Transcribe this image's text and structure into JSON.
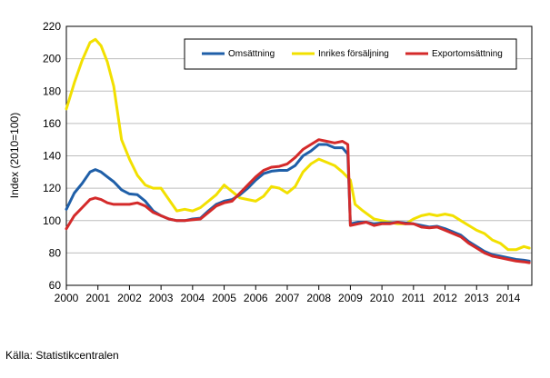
{
  "chart_data": {
    "type": "line",
    "ylabel": "Index (2010=100)",
    "ylim": [
      60,
      220
    ],
    "yticks": [
      60,
      80,
      100,
      120,
      140,
      160,
      180,
      200,
      220
    ],
    "xlim": [
      2000,
      2014.75
    ],
    "xticks": [
      "2000",
      "2001",
      "2002",
      "2003",
      "2004",
      "2005",
      "2006",
      "2007",
      "2008",
      "2009",
      "2010",
      "2011",
      "2012",
      "2013",
      "2014"
    ],
    "grid": true,
    "legend_position": "top-right",
    "colors": {
      "Omsättning": "#1f5fa8",
      "Inrikes försäljning": "#f2e000",
      "Exportomsättning": "#d42a2a"
    },
    "series": [
      {
        "name": "Omsättning",
        "points": [
          [
            2000.0,
            107
          ],
          [
            2000.25,
            117
          ],
          [
            2000.5,
            123
          ],
          [
            2000.75,
            130
          ],
          [
            2000.92,
            131.5
          ],
          [
            2001.1,
            130
          ],
          [
            2001.3,
            127
          ],
          [
            2001.5,
            124
          ],
          [
            2001.75,
            119
          ],
          [
            2002.0,
            116.5
          ],
          [
            2002.25,
            116
          ],
          [
            2002.5,
            112
          ],
          [
            2002.75,
            106
          ],
          [
            2003.0,
            103
          ],
          [
            2003.25,
            101
          ],
          [
            2003.5,
            100
          ],
          [
            2003.75,
            100
          ],
          [
            2004.0,
            101
          ],
          [
            2004.25,
            101.5
          ],
          [
            2004.5,
            106
          ],
          [
            2004.75,
            110
          ],
          [
            2005.0,
            112
          ],
          [
            2005.25,
            113
          ],
          [
            2005.5,
            116
          ],
          [
            2005.75,
            120
          ],
          [
            2006.0,
            125
          ],
          [
            2006.25,
            129
          ],
          [
            2006.5,
            130.5
          ],
          [
            2006.75,
            131
          ],
          [
            2007.0,
            131
          ],
          [
            2007.25,
            134
          ],
          [
            2007.5,
            140
          ],
          [
            2007.75,
            143
          ],
          [
            2008.0,
            147
          ],
          [
            2008.25,
            147
          ],
          [
            2008.5,
            145
          ],
          [
            2008.75,
            145
          ],
          [
            2008.92,
            141
          ],
          [
            2009.0,
            98
          ],
          [
            2009.25,
            99
          ],
          [
            2009.5,
            99
          ],
          [
            2009.75,
            98
          ],
          [
            2010.0,
            98.5
          ],
          [
            2010.25,
            98.5
          ],
          [
            2010.5,
            99
          ],
          [
            2010.75,
            98.5
          ],
          [
            2011.0,
            98
          ],
          [
            2011.25,
            97
          ],
          [
            2011.5,
            96
          ],
          [
            2011.75,
            96.5
          ],
          [
            2012.0,
            95
          ],
          [
            2012.25,
            93
          ],
          [
            2012.5,
            91
          ],
          [
            2012.75,
            87
          ],
          [
            2013.0,
            84
          ],
          [
            2013.25,
            81
          ],
          [
            2013.5,
            79
          ],
          [
            2013.75,
            78
          ],
          [
            2014.0,
            77
          ],
          [
            2014.25,
            76
          ],
          [
            2014.5,
            75.5
          ],
          [
            2014.67,
            75
          ]
        ]
      },
      {
        "name": "Inrikes försäljning",
        "points": [
          [
            2000.0,
            169
          ],
          [
            2000.25,
            185
          ],
          [
            2000.5,
            199
          ],
          [
            2000.75,
            210
          ],
          [
            2000.92,
            212
          ],
          [
            2001.1,
            208
          ],
          [
            2001.3,
            198
          ],
          [
            2001.5,
            183
          ],
          [
            2001.75,
            150
          ],
          [
            2002.0,
            138
          ],
          [
            2002.25,
            128
          ],
          [
            2002.5,
            122
          ],
          [
            2002.75,
            120
          ],
          [
            2003.0,
            120
          ],
          [
            2003.25,
            113
          ],
          [
            2003.5,
            106
          ],
          [
            2003.75,
            107
          ],
          [
            2004.0,
            106
          ],
          [
            2004.25,
            108
          ],
          [
            2004.5,
            112
          ],
          [
            2004.75,
            116
          ],
          [
            2005.0,
            122
          ],
          [
            2005.25,
            118
          ],
          [
            2005.5,
            114
          ],
          [
            2005.75,
            113
          ],
          [
            2006.0,
            112
          ],
          [
            2006.25,
            115
          ],
          [
            2006.5,
            121
          ],
          [
            2006.75,
            120
          ],
          [
            2007.0,
            117
          ],
          [
            2007.25,
            121
          ],
          [
            2007.5,
            130
          ],
          [
            2007.75,
            135
          ],
          [
            2008.0,
            138
          ],
          [
            2008.25,
            136
          ],
          [
            2008.5,
            134
          ],
          [
            2008.75,
            130
          ],
          [
            2009.0,
            125
          ],
          [
            2009.15,
            110
          ],
          [
            2009.4,
            106
          ],
          [
            2009.75,
            101
          ],
          [
            2010.0,
            100
          ],
          [
            2010.25,
            99
          ],
          [
            2010.5,
            98
          ],
          [
            2010.75,
            98
          ],
          [
            2011.0,
            101
          ],
          [
            2011.25,
            103
          ],
          [
            2011.5,
            104
          ],
          [
            2011.75,
            103
          ],
          [
            2012.0,
            104
          ],
          [
            2012.25,
            103
          ],
          [
            2012.5,
            100
          ],
          [
            2012.75,
            97
          ],
          [
            2013.0,
            94
          ],
          [
            2013.25,
            92
          ],
          [
            2013.5,
            88
          ],
          [
            2013.75,
            86
          ],
          [
            2014.0,
            82
          ],
          [
            2014.25,
            82
          ],
          [
            2014.5,
            84
          ],
          [
            2014.67,
            83
          ]
        ]
      },
      {
        "name": "Exportomsättning",
        "points": [
          [
            2000.0,
            95
          ],
          [
            2000.25,
            103
          ],
          [
            2000.5,
            108
          ],
          [
            2000.75,
            113
          ],
          [
            2000.92,
            114
          ],
          [
            2001.1,
            113
          ],
          [
            2001.3,
            111
          ],
          [
            2001.5,
            110
          ],
          [
            2001.75,
            110
          ],
          [
            2002.0,
            110
          ],
          [
            2002.25,
            111
          ],
          [
            2002.5,
            109
          ],
          [
            2002.75,
            105
          ],
          [
            2003.0,
            103
          ],
          [
            2003.25,
            101
          ],
          [
            2003.5,
            100
          ],
          [
            2003.75,
            100
          ],
          [
            2004.0,
            100.5
          ],
          [
            2004.25,
            101
          ],
          [
            2004.5,
            105
          ],
          [
            2004.75,
            109
          ],
          [
            2005.0,
            111
          ],
          [
            2005.25,
            112
          ],
          [
            2005.5,
            117
          ],
          [
            2005.75,
            122
          ],
          [
            2006.0,
            127
          ],
          [
            2006.25,
            131
          ],
          [
            2006.5,
            133
          ],
          [
            2006.75,
            133.5
          ],
          [
            2007.0,
            135
          ],
          [
            2007.25,
            139
          ],
          [
            2007.5,
            144
          ],
          [
            2007.75,
            147
          ],
          [
            2008.0,
            150
          ],
          [
            2008.25,
            149
          ],
          [
            2008.5,
            148
          ],
          [
            2008.75,
            149
          ],
          [
            2008.92,
            147
          ],
          [
            2009.0,
            97
          ],
          [
            2009.25,
            98
          ],
          [
            2009.5,
            99
          ],
          [
            2009.75,
            97
          ],
          [
            2010.0,
            98
          ],
          [
            2010.25,
            98
          ],
          [
            2010.5,
            99
          ],
          [
            2010.75,
            98
          ],
          [
            2011.0,
            98
          ],
          [
            2011.25,
            96
          ],
          [
            2011.5,
            95.5
          ],
          [
            2011.75,
            96
          ],
          [
            2012.0,
            94
          ],
          [
            2012.25,
            92
          ],
          [
            2012.5,
            90
          ],
          [
            2012.75,
            86
          ],
          [
            2013.0,
            83
          ],
          [
            2013.25,
            80
          ],
          [
            2013.5,
            78
          ],
          [
            2013.75,
            77
          ],
          [
            2014.0,
            76
          ],
          [
            2014.25,
            75
          ],
          [
            2014.5,
            74.5
          ],
          [
            2014.67,
            74
          ]
        ]
      }
    ]
  },
  "source": "Källa: Statistikcentralen"
}
